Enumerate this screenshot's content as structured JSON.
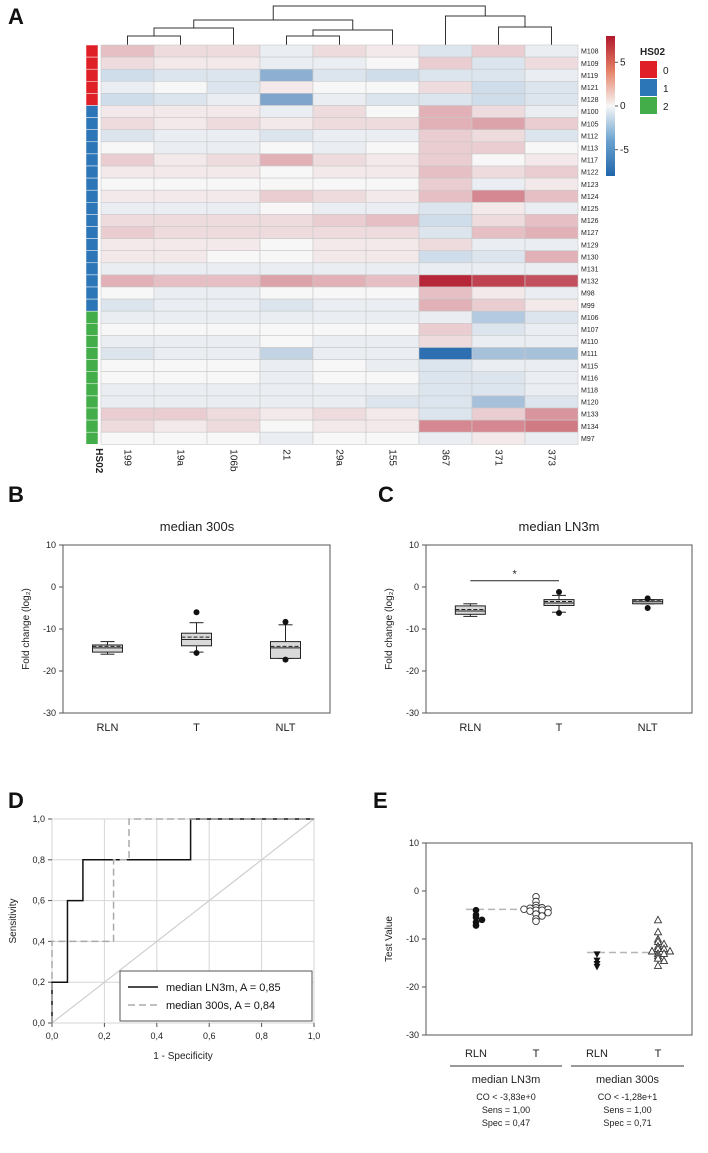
{
  "panels": {
    "a": "A",
    "b": "B",
    "c": "C",
    "d": "D",
    "e": "E"
  },
  "colors": {
    "group0": "#e02027",
    "group1": "#2c75b6",
    "group2": "#43ad4a",
    "rln_line": "#111111",
    "t_line": "#aaaaaa"
  },
  "chart_data": [
    {
      "id": "heatmap",
      "type": "heatmap",
      "annotation_label": "HS02",
      "legend_title": "HS02",
      "legend_groups": [
        "0",
        "1",
        "2"
      ],
      "colorbar_ticks": [
        {
          "value": 5,
          "label": "5"
        },
        {
          "value": 0,
          "label": "0"
        },
        {
          "value": -5,
          "label": "-5"
        }
      ],
      "color_range": [
        -8,
        8
      ],
      "columns": [
        "199",
        "19a",
        "106b",
        "21",
        "29a",
        "155",
        "367",
        "371",
        "373"
      ],
      "rows": [
        "M108",
        "M109",
        "M119",
        "M121",
        "M128",
        "M100",
        "M105",
        "M112",
        "M113",
        "M117",
        "M122",
        "M123",
        "M124",
        "M125",
        "M126",
        "M127",
        "M129",
        "M130",
        "M131",
        "M132",
        "M98",
        "M99",
        "M106",
        "M107",
        "M110",
        "M111",
        "M115",
        "M116",
        "M118",
        "M120",
        "M133",
        "M134",
        "M97"
      ],
      "row_groups": [
        0,
        0,
        0,
        0,
        0,
        1,
        1,
        1,
        1,
        1,
        1,
        1,
        1,
        1,
        1,
        1,
        1,
        1,
        1,
        1,
        1,
        1,
        2,
        2,
        2,
        2,
        2,
        2,
        2,
        2,
        2,
        2,
        2
      ],
      "values": [
        [
          2,
          1,
          1,
          -0.5,
          1,
          0.5,
          -1,
          1.5,
          -0.5
        ],
        [
          1,
          0.5,
          0.5,
          -0.5,
          -0.5,
          0,
          1.5,
          -1,
          1
        ],
        [
          -1.5,
          -1,
          -1,
          -4,
          -1,
          -1.5,
          -1,
          -1,
          -0.5
        ],
        [
          -0.5,
          0,
          -1,
          0.5,
          0,
          0,
          1,
          -1.5,
          -1
        ],
        [
          -1.5,
          -1,
          -0.5,
          -4.5,
          -0.5,
          -1,
          -1,
          -1.5,
          -1
        ],
        [
          0.5,
          0.5,
          0.5,
          -0.5,
          1,
          0,
          2.5,
          1,
          -0.5
        ],
        [
          1,
          0.5,
          1,
          0.5,
          1,
          1,
          2.5,
          3,
          1.5
        ],
        [
          -1,
          -0.5,
          -0.5,
          -1,
          -0.5,
          -0.5,
          1.5,
          1,
          -1
        ],
        [
          0,
          -0.5,
          -0.5,
          0,
          -0.5,
          0,
          1.5,
          1.5,
          0
        ],
        [
          1.5,
          0.5,
          1,
          2.5,
          1,
          0.5,
          1.5,
          0,
          0.5
        ],
        [
          0.5,
          0.5,
          0.5,
          0,
          0.5,
          0.5,
          2,
          1,
          1.5
        ],
        [
          0,
          0,
          0,
          0,
          0,
          0,
          1.5,
          -0.5,
          0.5
        ],
        [
          0.5,
          0.5,
          0.5,
          1.5,
          1,
          0.5,
          2,
          4,
          2
        ],
        [
          -0.5,
          -0.5,
          -0.5,
          0,
          -0.5,
          -0.5,
          -1,
          0.5,
          -0.5
        ],
        [
          1,
          1,
          1,
          1,
          1.5,
          2,
          -1.5,
          1,
          2
        ],
        [
          1.5,
          1,
          1,
          1,
          1,
          1,
          -1,
          2,
          2.5
        ],
        [
          0.5,
          0.5,
          0.5,
          0,
          0.5,
          0.5,
          1,
          -0.5,
          -0.5
        ],
        [
          0.5,
          0.5,
          0,
          0,
          0.5,
          0.5,
          -1.5,
          -1,
          2.5
        ],
        [
          -0.5,
          -0.5,
          -0.5,
          -0.5,
          -0.5,
          -0.5,
          -0.5,
          -0.5,
          -0.5
        ],
        [
          2.5,
          2,
          2,
          3,
          2.5,
          2,
          7.5,
          6.5,
          6
        ],
        [
          0,
          -0.5,
          -0.5,
          0,
          0,
          0,
          2,
          0.5,
          -0.5
        ],
        [
          -1,
          -0.5,
          -0.5,
          -1,
          -0.5,
          -0.5,
          2.5,
          1.5,
          0.5
        ],
        [
          -0.5,
          -0.5,
          -0.5,
          -0.5,
          -0.5,
          -0.5,
          -0.5,
          -2.5,
          -1
        ],
        [
          0,
          0,
          0,
          0,
          0,
          0,
          1.5,
          -1,
          -0.5
        ],
        [
          -0.5,
          -0.5,
          -0.5,
          0,
          -0.5,
          -0.5,
          1,
          -0.5,
          -0.5
        ],
        [
          -1,
          -0.5,
          -0.5,
          -2,
          -0.5,
          -0.5,
          -7.5,
          -3,
          -3
        ],
        [
          0,
          0,
          0,
          -0.5,
          0,
          -0.5,
          -1,
          -0.5,
          -0.5
        ],
        [
          0,
          0,
          0,
          -0.5,
          0,
          0,
          -1,
          -1,
          -0.5
        ],
        [
          -0.5,
          -0.5,
          -0.5,
          -0.5,
          -0.5,
          -0.5,
          -1,
          -1,
          -0.5
        ],
        [
          -0.5,
          -0.5,
          -0.5,
          -0.5,
          -0.5,
          -1,
          -1,
          -3,
          -1
        ],
        [
          1.5,
          1.5,
          1,
          0.5,
          1,
          0.5,
          -1,
          1.5,
          3.5
        ],
        [
          1,
          0.5,
          1,
          0,
          0.5,
          0.5,
          4,
          4,
          4.5
        ],
        [
          0,
          0,
          0,
          -0.5,
          0,
          0,
          -0.5,
          0.5,
          -0.5
        ]
      ]
    },
    {
      "id": "box300s",
      "type": "box",
      "title": "median 300s",
      "ylabel": "Fold change (log₂)",
      "ylim": [
        -30,
        10
      ],
      "yticks": [
        10,
        0,
        -10,
        -20,
        -30
      ],
      "categories": [
        "RLN",
        "T",
        "NLT"
      ],
      "boxes": [
        {
          "min": -16,
          "q1": -15.5,
          "median": -14.5,
          "mean": -14.5,
          "q3": -13.8,
          "max": -13,
          "outliers": []
        },
        {
          "min": -15.5,
          "q1": -14,
          "median": -12.5,
          "mean": -12.3,
          "q3": -11,
          "max": -8.5,
          "outliers": [
            -6,
            -15.7
          ]
        },
        {
          "min": -17,
          "q1": -17,
          "median": -14.5,
          "mean": -14.5,
          "q3": -13,
          "max": -9,
          "outliers": [
            -8.3,
            -17.3
          ]
        }
      ]
    },
    {
      "id": "boxLN3m",
      "type": "box",
      "title": "median LN3m",
      "ylabel": "Fold change (log₂)",
      "ylim": [
        -30,
        10
      ],
      "yticks": [
        10,
        0,
        -10,
        -20,
        -30
      ],
      "categories": [
        "RLN",
        "T",
        "NLT"
      ],
      "significance": {
        "from": "RLN",
        "to": "T",
        "label": "*",
        "y": 1.5
      },
      "boxes": [
        {
          "min": -7,
          "q1": -6.5,
          "median": -5.7,
          "mean": -5.7,
          "q3": -4.5,
          "max": -4,
          "outliers": []
        },
        {
          "min": -6,
          "q1": -4.4,
          "median": -3.8,
          "mean": -3.8,
          "q3": -3,
          "max": -2,
          "outliers": [
            -1.2,
            -6.2
          ]
        },
        {
          "min": -4,
          "q1": -4,
          "median": -3.5,
          "mean": -3.5,
          "q3": -3,
          "max": -3,
          "outliers": [
            -2.7,
            -5
          ]
        }
      ]
    },
    {
      "id": "roc",
      "type": "line",
      "xlabel": "1 - Specificity",
      "ylabel": "Sensitivity",
      "xlim": [
        0,
        1
      ],
      "ylim": [
        0,
        1
      ],
      "xticks": [
        "0,0",
        "0,2",
        "0,4",
        "0,6",
        "0,8",
        "1,0"
      ],
      "yticks": [
        "0,0",
        "0,2",
        "0,4",
        "0,6",
        "0,8",
        "1,0"
      ],
      "series": [
        {
          "name": "median LN3m, A = 0,85",
          "style": "solid",
          "points": [
            [
              0,
              0
            ],
            [
              0,
              0.2
            ],
            [
              0.059,
              0.2
            ],
            [
              0.059,
              0.6
            ],
            [
              0.118,
              0.6
            ],
            [
              0.118,
              0.8
            ],
            [
              0.529,
              0.8
            ],
            [
              0.529,
              1
            ],
            [
              1,
              1
            ]
          ]
        },
        {
          "name": "median 300s, A = 0,84",
          "style": "dashed",
          "points": [
            [
              0,
              0
            ],
            [
              0,
              0.4
            ],
            [
              0.235,
              0.4
            ],
            [
              0.235,
              0.8
            ],
            [
              0.294,
              0.8
            ],
            [
              0.294,
              1
            ],
            [
              1,
              1
            ]
          ]
        }
      ]
    },
    {
      "id": "testvalue",
      "type": "scatter",
      "ylabel": "Test Value",
      "ylim": [
        -30,
        10
      ],
      "yticks": [
        10,
        0,
        -10,
        -20,
        -30
      ],
      "groups": [
        {
          "name": "median LN3m",
          "stats": [
            "CO < -3,83e+0",
            "Sens = 1,00",
            "Spec = 0,47"
          ],
          "cutoff": -3.83,
          "rln": [
            -4,
            -5,
            -5.5,
            -6,
            -6.5,
            -7.2
          ],
          "t": [
            -1.2,
            -2.2,
            -3,
            -3.5,
            -3.5,
            -3.6,
            -3.8,
            -3.8,
            -4,
            -4,
            -4.2,
            -4.5,
            -4.8,
            -5.2,
            -5.8,
            -6.3
          ]
        },
        {
          "name": "median 300s",
          "stats": [
            "CO < -1,28e+1",
            "Sens = 1,00",
            "Spec = 0,71"
          ],
          "cutoff": -12.8,
          "rln": [
            -13.2,
            -14.5,
            -15.2,
            -15.8
          ],
          "t": [
            -6,
            -8.5,
            -10,
            -10.5,
            -11,
            -11.5,
            -12,
            -12,
            -12.5,
            -12.5,
            -13,
            -13,
            -13.5,
            -14,
            -14.5,
            -15.5
          ]
        }
      ],
      "tick_labels": [
        "RLN",
        "T",
        "RLN",
        "T"
      ]
    }
  ]
}
